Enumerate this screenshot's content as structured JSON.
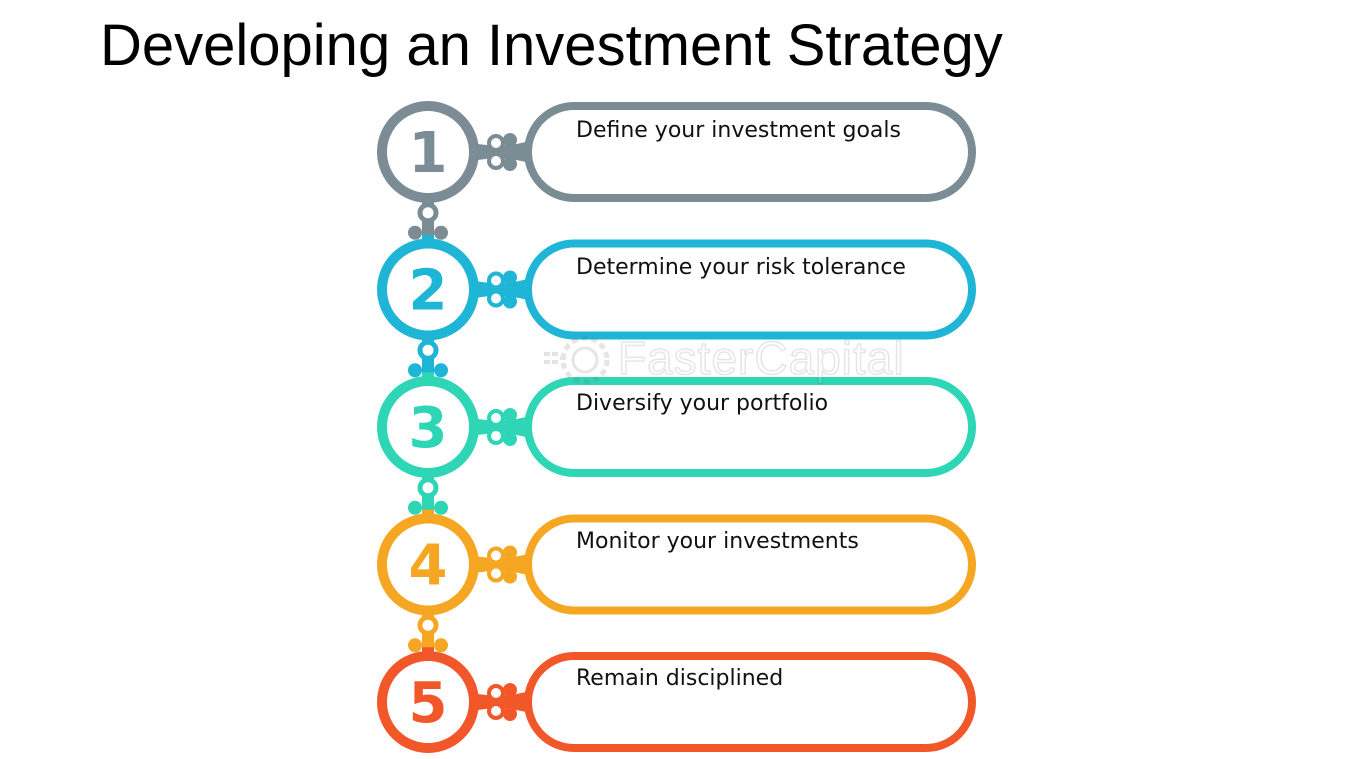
{
  "title": "Developing an Investment Strategy",
  "watermark": "FasterCapital",
  "steps": [
    {
      "number": "1",
      "label": "Define your investment goals",
      "color": "#7b8c95"
    },
    {
      "number": "2",
      "label": "Determine your risk tolerance",
      "color": "#1fb5d6"
    },
    {
      "number": "3",
      "label": "Diversify your portfolio",
      "color": "#2fd6b6"
    },
    {
      "number": "4",
      "label": "Monitor your investments",
      "color": "#f5a623"
    },
    {
      "number": "5",
      "label": "Remain disciplined",
      "color": "#f2572a"
    }
  ]
}
